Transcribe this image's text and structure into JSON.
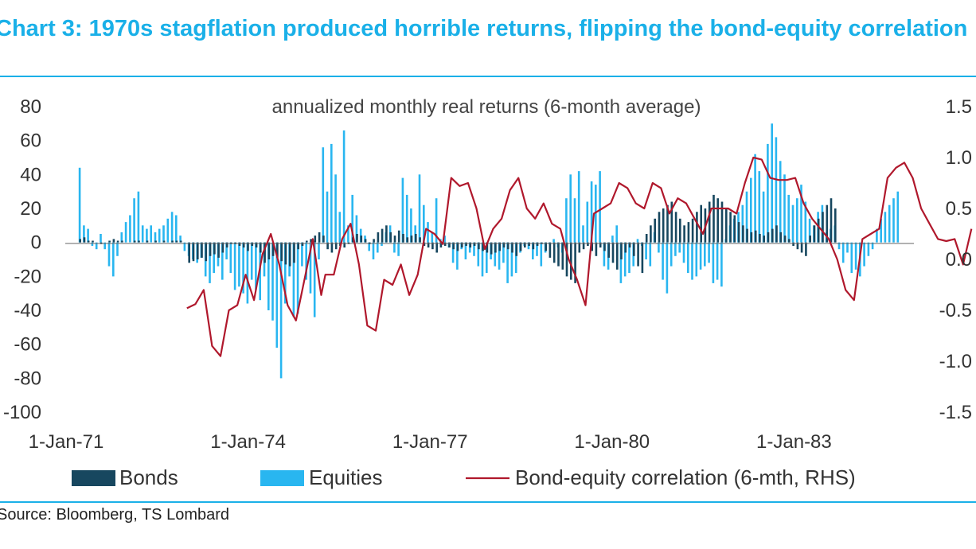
{
  "title": "Chart 3: 1970s stagflation produced horrible returns, flipping the bond-equity correlation",
  "source": "Source: Bloomberg, TS Lombard",
  "chart_data": {
    "type": "bar",
    "subtitle": "annualized monthly real returns (6-month average)",
    "xlabel": "",
    "ylabel": "",
    "x_tick_labels": [
      "1-Jan-71",
      "1-Jan-74",
      "1-Jan-77",
      "1-Jan-80",
      "1-Jan-83"
    ],
    "x_tick_months": [
      0,
      36,
      72,
      108,
      144
    ],
    "ylim_left": [
      -100,
      80
    ],
    "yticks_left": [
      "80",
      "60",
      "40",
      "20",
      "0",
      "-20",
      "-40",
      "-60",
      "-80",
      "-100"
    ],
    "ylim_right": [
      -1.5,
      1.5
    ],
    "yticks_right": [
      "1.5",
      "1.0",
      "0.5",
      "0.0",
      "-0.5",
      "-1.0",
      "-1.5"
    ],
    "legend": [
      "Bonds",
      "Equities",
      "Bond-equity correlation (6-mth, RHS)"
    ],
    "legend_position": "bottom",
    "colors": {
      "bonds": "#17475f",
      "equities": "#29b6f0",
      "correlation": "#b0182c",
      "accent": "#1ab0e8"
    },
    "series": [
      {
        "name": "Bonds",
        "axis": "left",
        "type": "bar",
        "start": "1971-01",
        "frequency": "monthly",
        "values": [
          2,
          3,
          1,
          1,
          0,
          -1,
          0,
          1,
          2,
          1,
          1,
          0,
          0,
          1,
          1,
          0,
          1,
          0,
          1,
          0,
          1,
          0,
          1,
          1,
          1,
          0,
          -12,
          -11,
          -10,
          -9,
          -11,
          -8,
          -7,
          -9,
          -6,
          -3,
          -1,
          -1,
          -2,
          -3,
          -5,
          -2,
          -3,
          -6,
          -12,
          -10,
          -8,
          -9,
          -11,
          -13,
          -14,
          -12,
          -4,
          -2,
          1,
          2,
          4,
          6,
          4,
          -4,
          -6,
          -4,
          -2,
          -3,
          -1,
          3,
          5,
          4,
          2,
          -1,
          2,
          6,
          8,
          10,
          6,
          4,
          7,
          5,
          3,
          4,
          5,
          3,
          -2,
          -3,
          -4,
          -6,
          -3,
          -2,
          -3,
          -4,
          -5,
          -3,
          -2,
          -3,
          -2,
          -4,
          -5,
          -6,
          -7,
          -6,
          -5,
          -3,
          -4,
          -6,
          -8,
          -5,
          -3,
          -2,
          -4,
          -2,
          -1,
          -5,
          -9,
          -12,
          -14,
          -16,
          -20,
          -22,
          -24,
          -6,
          -4,
          -2,
          -5,
          -8,
          -3,
          -5,
          -9,
          -12,
          -16,
          -10,
          -6,
          -3,
          -8,
          -14,
          -18,
          5,
          10,
          14,
          18,
          20,
          22,
          24,
          18,
          14,
          10,
          12,
          14,
          18,
          22,
          20,
          24,
          28,
          26,
          24,
          20,
          18,
          16,
          12,
          10,
          8,
          6,
          7,
          5,
          4,
          6,
          8,
          10,
          6,
          4,
          2,
          -2,
          -4,
          -6,
          -8,
          4,
          10,
          14,
          18,
          22,
          26,
          20
        ],
        "y": [
          2,
          3,
          1,
          1,
          0,
          -1,
          0,
          1,
          2,
          1,
          1,
          0,
          0,
          1,
          1,
          0,
          1,
          0,
          1,
          0,
          1,
          0,
          1,
          1,
          1,
          0,
          -12,
          -11,
          -10,
          -9,
          -11,
          -8,
          -7,
          -9,
          -6,
          -3,
          -1,
          -1,
          -2,
          -3,
          -5,
          -2,
          -3,
          -6,
          -12,
          -10,
          -8,
          -9,
          -11,
          -13,
          -14,
          -12,
          -4,
          -2,
          1,
          2,
          4,
          6,
          4,
          -4,
          -6,
          -4,
          -2,
          -3,
          -1,
          3,
          5,
          4,
          2,
          -1,
          2,
          6,
          8,
          10,
          6,
          4,
          7,
          5,
          3,
          4,
          5,
          3,
          -2,
          -3,
          -4,
          -6,
          -3,
          -2,
          -3,
          -4,
          -5,
          -3,
          -2,
          -3,
          -2,
          -4,
          -5,
          -6,
          -7,
          -6,
          -5,
          -3,
          -4,
          -6,
          -8,
          -5,
          -3,
          -2,
          -4,
          -2,
          -1,
          -5,
          -9,
          -12,
          -14,
          -16,
          -20,
          -22,
          -24,
          -6,
          -4,
          -2,
          -5,
          -8,
          -3,
          -5,
          -9,
          -12,
          -16,
          -10,
          -6,
          -3,
          -8,
          -14,
          -18,
          5,
          10,
          14,
          18,
          20,
          22,
          24,
          18,
          14,
          10,
          12,
          14,
          18,
          22,
          20,
          24,
          28,
          26,
          24,
          20,
          18,
          16,
          12,
          10,
          8,
          6,
          7,
          5,
          4,
          6,
          8,
          10,
          6,
          4,
          2,
          -2,
          -4,
          -6,
          -8,
          4,
          10,
          14,
          18,
          22,
          26,
          20
        ]
      },
      {
        "name": "Equities",
        "axis": "left",
        "type": "bar",
        "start": "1971-01",
        "frequency": "monthly",
        "values": [
          44,
          10,
          8,
          -2,
          -4,
          5,
          -4,
          -14,
          -20,
          -8,
          6,
          12,
          16,
          26,
          30,
          10,
          8,
          10,
          6,
          8,
          10,
          14,
          18,
          16,
          4,
          -5,
          -8,
          -10,
          -12,
          -9,
          -20,
          -24,
          -18,
          -14,
          -22,
          -10,
          -18,
          -28,
          -26,
          -30,
          -36,
          -22,
          -28,
          -34,
          -20,
          -40,
          -46,
          -62,
          -80,
          -36,
          -20,
          -44,
          -42,
          -14,
          -22,
          -30,
          -44,
          -10,
          56,
          30,
          58,
          40,
          18,
          66,
          10,
          28,
          16,
          8,
          4,
          -5,
          -10,
          -6,
          -2,
          6,
          10,
          -6,
          -8,
          38,
          28,
          20,
          10,
          40,
          22,
          12,
          6,
          26,
          2,
          4,
          -3,
          -12,
          -16,
          -4,
          -10,
          -6,
          -8,
          -14,
          -20,
          -18,
          -10,
          -14,
          -16,
          -12,
          -24,
          -20,
          -18,
          -6,
          -2,
          -4,
          -10,
          -8,
          -14,
          -6,
          -1,
          2,
          -3,
          -6,
          26,
          40,
          26,
          42,
          10,
          24,
          36,
          34,
          42,
          -14,
          -16,
          4,
          10,
          -24,
          -20,
          -18,
          -14,
          2,
          -2,
          -10,
          -14,
          6,
          -6,
          -22,
          -30,
          -14,
          -8,
          -6,
          -12,
          -18,
          -22,
          -20,
          -16,
          -14,
          -12,
          -24,
          -22,
          -26,
          2,
          10,
          14,
          18,
          22,
          30,
          38,
          52,
          42,
          30,
          58,
          70,
          62,
          48,
          40,
          28,
          22,
          26,
          34,
          24,
          14,
          10,
          18,
          22,
          6,
          8,
          10,
          -4,
          -12,
          -6,
          -18,
          -16,
          -20,
          -14,
          -8,
          -4,
          8,
          14,
          18,
          22,
          26,
          30
        ],
        "y": [
          44,
          10,
          8,
          -2,
          -4,
          5,
          -4,
          -14,
          -20,
          -8,
          6,
          12,
          16,
          26,
          30,
          10,
          8,
          10,
          6,
          8,
          10,
          14,
          18,
          16,
          4,
          -5,
          -8,
          -10,
          -12,
          -9,
          -20,
          -24,
          -18,
          -14,
          -22,
          -10,
          -18,
          -28,
          -26,
          -30,
          -36,
          -22,
          -28,
          -34,
          -20,
          -40,
          -46,
          -62,
          -80,
          -36,
          -20,
          -44,
          -42,
          -14,
          -22,
          -30,
          -44,
          -10,
          56,
          30,
          58,
          40,
          18,
          66,
          10,
          28,
          16,
          8,
          4,
          -5,
          -10,
          -6,
          -2,
          6,
          10,
          -6,
          -8,
          38,
          28,
          20,
          10,
          40,
          22,
          12,
          6,
          26,
          2,
          4,
          -3,
          -12,
          -16,
          -4,
          -10,
          -6,
          -8,
          -14,
          -20,
          -18,
          -10,
          -14,
          -16,
          -12,
          -24,
          -20,
          -18,
          -6,
          -2,
          -4,
          -10,
          -8,
          -14,
          -6,
          -1,
          2,
          -3,
          -6,
          26,
          40,
          26,
          42,
          10,
          24,
          36,
          34,
          42,
          -14,
          -16,
          4,
          10,
          -24,
          -20,
          -18,
          -14,
          2,
          -2,
          -10,
          -14,
          6,
          -6,
          -22,
          -30,
          -14,
          -8,
          -6,
          -12,
          -18,
          -22,
          -20,
          -16,
          -14,
          -12,
          -24,
          -22,
          -26,
          2,
          10,
          14,
          18,
          22,
          30,
          38,
          52,
          42,
          30,
          58,
          70,
          62,
          48,
          40,
          28,
          22,
          26,
          34,
          24,
          14,
          10,
          18,
          22,
          6,
          8,
          10,
          -4,
          -12,
          -6,
          -18,
          -16,
          -20,
          -14,
          -8,
          -4,
          8,
          14,
          18,
          22,
          26,
          30
        ]
      },
      {
        "name": "Bond-equity correlation (6-mth, RHS)",
        "axis": "right",
        "type": "line",
        "x_months": [
          29,
          31,
          33,
          35,
          37,
          39,
          41,
          43,
          45,
          47,
          49,
          51,
          53,
          55,
          57,
          59,
          61,
          62,
          64,
          66,
          68,
          70,
          72,
          74,
          76,
          78,
          80,
          82,
          84,
          86,
          88,
          90,
          92,
          94,
          96,
          98,
          100,
          102,
          104,
          106,
          108,
          110,
          112,
          114,
          116,
          118,
          120,
          122,
          124,
          126,
          128,
          130,
          132,
          134,
          136,
          138,
          140,
          142,
          144,
          146,
          148,
          150,
          152,
          154,
          156,
          158,
          160,
          162,
          164,
          166,
          168,
          170,
          172,
          174,
          176,
          178,
          180,
          182,
          184,
          186,
          188,
          190,
          192,
          194,
          196,
          198,
          200,
          202,
          204,
          206,
          208,
          210,
          212,
          214,
          216
        ],
        "y": [
          -0.48,
          -0.44,
          -0.3,
          -0.85,
          -0.95,
          -0.5,
          -0.45,
          -0.15,
          -0.4,
          0.05,
          0.25,
          -0.05,
          -0.45,
          -0.6,
          -0.2,
          0.2,
          -0.35,
          -0.15,
          -0.15,
          0.2,
          0.35,
          -0.05,
          -0.65,
          -0.7,
          -0.2,
          -0.25,
          -0.05,
          -0.35,
          -0.15,
          0.3,
          0.25,
          0.15,
          0.8,
          0.72,
          0.75,
          0.5,
          0.1,
          0.3,
          0.4,
          0.68,
          0.8,
          0.5,
          0.4,
          0.55,
          0.35,
          0.3,
          0.0,
          -0.2,
          -0.45,
          0.45,
          0.5,
          0.55,
          0.75,
          0.7,
          0.55,
          0.5,
          0.75,
          0.7,
          0.45,
          0.6,
          0.55,
          0.4,
          0.25,
          0.5,
          0.5,
          0.5,
          0.45,
          0.75,
          1.0,
          0.98,
          0.8,
          0.78,
          0.78,
          0.8,
          0.55,
          0.4,
          0.3,
          0.2,
          0.0,
          -0.3,
          -0.4,
          0.2,
          0.25,
          0.3,
          0.8,
          0.9,
          0.95,
          0.8,
          0.5,
          0.35,
          0.2,
          0.18,
          0.2,
          -0.05,
          0.3
        ]
      }
    ]
  }
}
